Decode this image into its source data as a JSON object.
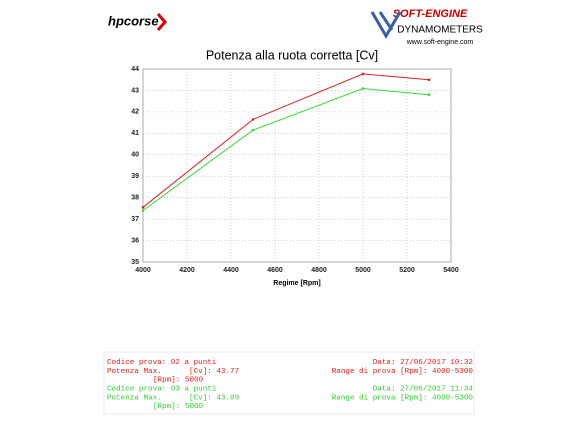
{
  "header": {
    "logo": "hpcorse",
    "brand": "SOFT-ENGINE",
    "subtitle": "DYNAMOMETERS",
    "url": "www.soft-engine.com"
  },
  "chart_data": {
    "type": "line",
    "title": "Potenza alla ruota corretta [Cv]",
    "x_label": "Regime [Rpm]",
    "x": [
      4000,
      4500,
      5000,
      5300
    ],
    "series": [
      {
        "name": "02",
        "color": "#e02020",
        "values": [
          37.55,
          41.65,
          43.77,
          43.5
        ]
      },
      {
        "name": "03",
        "color": "#33dd33",
        "values": [
          37.4,
          41.15,
          43.09,
          42.8
        ]
      }
    ],
    "xlim": [
      4000,
      5400
    ],
    "xticks": [
      4000,
      4200,
      4400,
      4600,
      4800,
      5000,
      5200,
      5400
    ],
    "ylim": [
      35,
      44
    ],
    "yticks": [
      35,
      36,
      37,
      38,
      39,
      40,
      41,
      42,
      43,
      44
    ],
    "grid": true
  },
  "report": [
    {
      "color": "#e02020",
      "code": "Codice prova: 02 a punti",
      "date": "Data: 27/06/2017 10:32",
      "power": "Potenza Max.      [Cv]: 43.77",
      "range": "Range di prova [Rpm]: 4000-5300",
      "rpm": "[Rpm]: 5000"
    },
    {
      "color": "#33cc33",
      "code": "Codice prova: 03 a punti",
      "date": "Data: 27/06/2017 11:34",
      "power": "Potenza Max.      [Cv]: 43.09",
      "range": "Range di prova [Rpm]: 4000-5300",
      "rpm": "[Rpm]: 5000"
    }
  ]
}
